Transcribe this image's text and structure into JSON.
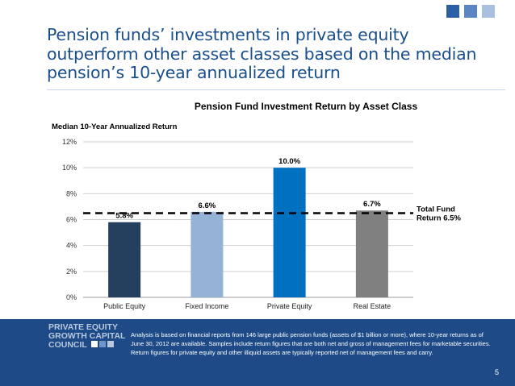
{
  "slide": {
    "headline": "Pension funds’ investments in private equity outperform other asset classes based on the median pension’s 10-year annualized return",
    "page_number": "5",
    "footnote": "Analysis is based on financial reports from 146 large public pension funds (assets of $1 billion or more), where 10-year returns as of June 30, 2012 are available.  Samples include return figures that are both net and gross of management fees for marketable securities. Return figures for private equity and other illiquid assets are typically reported net of management fees and carry.",
    "logo": {
      "line1": "PRIVATE EQUITY",
      "line2": "GROWTH CAPITAL",
      "line3": "COUNCIL"
    },
    "colors": {
      "headline": "#1a4f8c",
      "footer": "#1e4b87",
      "deco_squares": [
        "#2b5fa6",
        "#5b86c4",
        "#a9c0de"
      ]
    }
  },
  "chart_data": {
    "type": "bar",
    "title": "Pension Fund Investment Return by Asset Class",
    "ylabel": "Median 10-Year Annualized Return",
    "xlabel": "",
    "categories": [
      "Public Equity",
      "Fixed Income",
      "Private Equity",
      "Real Estate"
    ],
    "values": [
      5.8,
      6.6,
      10.0,
      6.7
    ],
    "data_labels": [
      "5.8%",
      "6.6%",
      "10.0%",
      "6.7%"
    ],
    "bar_colors": [
      "#253f5f",
      "#95b3d7",
      "#0070c0",
      "#808080"
    ],
    "ylim": [
      0,
      12
    ],
    "yticks": [
      0,
      2,
      4,
      6,
      8,
      10,
      12
    ],
    "ytick_labels": [
      "0%",
      "2%",
      "4%",
      "6%",
      "8%",
      "10%",
      "12%"
    ],
    "grid": true,
    "reference_line": {
      "value": 6.5,
      "label_line1": "Total Fund",
      "label_line2": "Return 6.5%",
      "style": "dashed"
    }
  }
}
